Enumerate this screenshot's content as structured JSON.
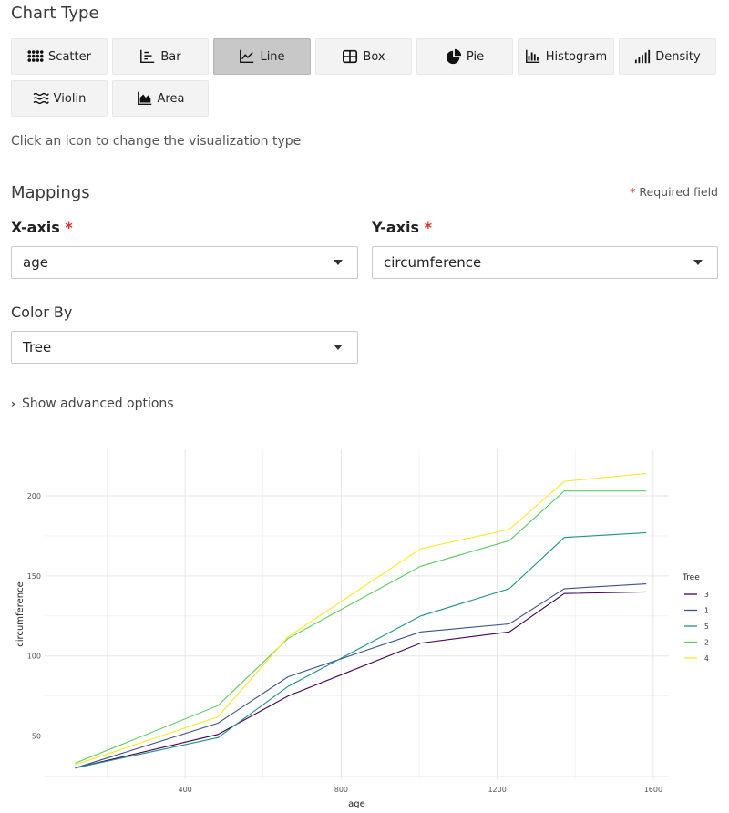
{
  "chart_type_section": {
    "title": "Chart Type",
    "buttons": [
      {
        "label": "Scatter",
        "icon": "scatter-icon",
        "active": false
      },
      {
        "label": "Bar",
        "icon": "bar-chart-icon",
        "active": false
      },
      {
        "label": "Line",
        "icon": "line-chart-icon",
        "active": true
      },
      {
        "label": "Box",
        "icon": "box-plot-icon",
        "active": false
      },
      {
        "label": "Pie",
        "icon": "pie-chart-icon",
        "active": false
      },
      {
        "label": "Histogram",
        "icon": "histogram-icon",
        "active": false
      },
      {
        "label": "Density",
        "icon": "density-icon",
        "active": false
      },
      {
        "label": "Violin",
        "icon": "violin-icon",
        "active": false
      },
      {
        "label": "Area",
        "icon": "area-chart-icon",
        "active": false
      }
    ],
    "hint": "Click an icon to change the visualization type"
  },
  "mappings": {
    "title": "Mappings",
    "required_star": "*",
    "required_note": "Required field",
    "x_axis": {
      "label": "X-axis",
      "value": "age"
    },
    "y_axis": {
      "label": "Y-axis",
      "value": "circumference"
    },
    "color_by": {
      "label": "Color By",
      "value": "Tree"
    }
  },
  "advanced": {
    "label": "Show advanced options",
    "chevron": "›"
  },
  "chart_data": {
    "type": "line",
    "title": "",
    "xlabel": "age",
    "ylabel": "circumference",
    "xlim": [
      40,
      1640
    ],
    "ylim": [
      23,
      229
    ],
    "xticks": [
      400,
      800,
      1200,
      1600
    ],
    "yticks": [
      50,
      100,
      150,
      200
    ],
    "grid": true,
    "legend_title": "Tree",
    "legend_position": "right",
    "x": [
      118,
      484,
      664,
      1004,
      1231,
      1372,
      1582
    ],
    "series": [
      {
        "name": "3",
        "color": "#440154",
        "values": [
          30,
          51,
          75,
          108,
          115,
          139,
          140
        ]
      },
      {
        "name": "1",
        "color": "#3b528b",
        "values": [
          30,
          58,
          87,
          115,
          120,
          142,
          145
        ]
      },
      {
        "name": "5",
        "color": "#21908c",
        "values": [
          30,
          49,
          81,
          125,
          142,
          174,
          177
        ]
      },
      {
        "name": "2",
        "color": "#5ec962",
        "values": [
          33,
          69,
          111,
          156,
          172,
          203,
          203
        ]
      },
      {
        "name": "4",
        "color": "#fde725",
        "values": [
          32,
          62,
          112,
          167,
          179,
          209,
          214
        ]
      }
    ]
  }
}
